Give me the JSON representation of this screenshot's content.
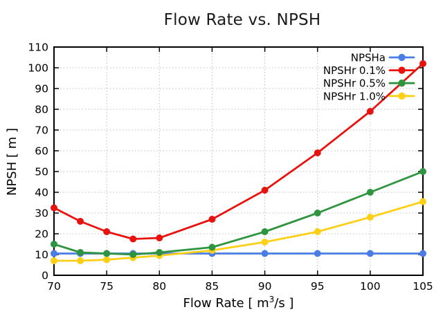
{
  "chart_data": {
    "type": "line",
    "title": "Flow Rate vs. NPSH",
    "xlabel": "Flow Rate [ m³/s ]",
    "xlabel_parts": {
      "prefix": "Flow Rate [ m",
      "sup": "3",
      "suffix": "/s ]"
    },
    "ylabel": "NPSH [ m ]",
    "xlim": [
      70,
      105
    ],
    "ylim": [
      0,
      110
    ],
    "x_ticks": [
      70,
      75,
      80,
      85,
      90,
      95,
      100,
      105
    ],
    "y_ticks": [
      0,
      10,
      20,
      30,
      40,
      50,
      60,
      70,
      80,
      90,
      100,
      110
    ],
    "grid": true,
    "grid_style": "dotted",
    "legend_position": "top-right-inside",
    "background_color": "#ffffff",
    "x": [
      70,
      72.5,
      75,
      77.5,
      80,
      85,
      90,
      95,
      100,
      105
    ],
    "series": [
      {
        "name": "NPSHa",
        "color": "#4a7de5",
        "marker": "circle",
        "values": [
          10.5,
          10.5,
          10.5,
          10.5,
          10.5,
          10.5,
          10.5,
          10.5,
          10.5,
          10.5
        ]
      },
      {
        "name": "NPSHr 0.1%",
        "color": "#e8120f",
        "marker": "circle",
        "values": [
          32.5,
          26,
          21,
          17.5,
          18,
          27,
          41,
          59,
          79,
          102
        ]
      },
      {
        "name": "NPSHr 0.5%",
        "color": "#2e9440",
        "marker": "circle",
        "values": [
          15,
          11,
          10.5,
          10,
          11,
          13.5,
          21,
          30,
          40,
          50
        ]
      },
      {
        "name": "NPSHr 1.0%",
        "color": "#fdd017",
        "marker": "circle",
        "values": [
          7,
          7,
          7.5,
          8.5,
          9.5,
          12,
          16,
          21,
          28,
          35.5
        ]
      }
    ]
  }
}
